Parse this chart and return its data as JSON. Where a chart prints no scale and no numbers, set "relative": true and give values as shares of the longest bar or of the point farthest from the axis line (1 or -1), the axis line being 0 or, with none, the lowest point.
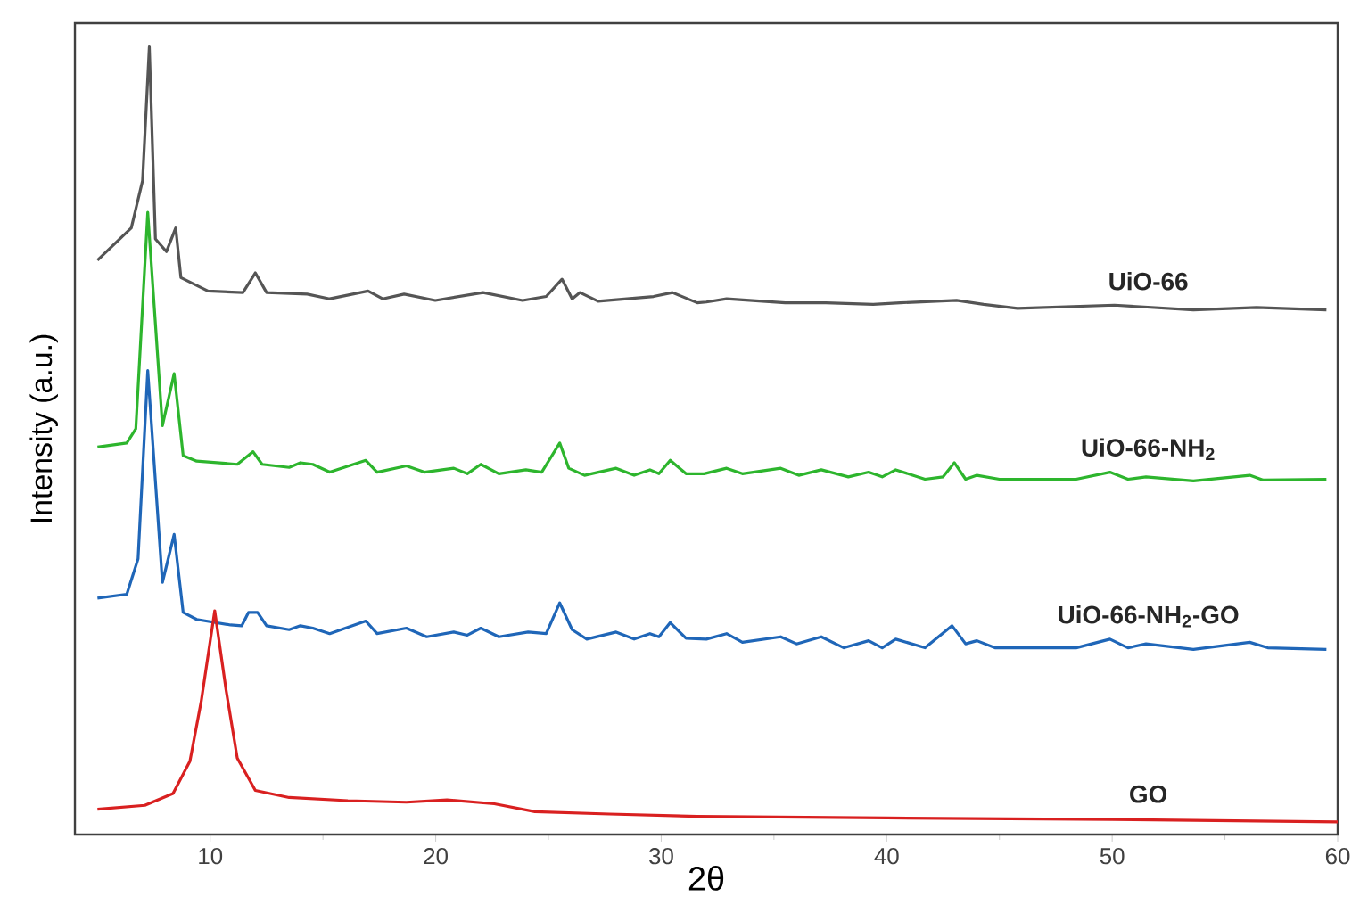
{
  "chart_data": {
    "type": "line",
    "xlabel": "2θ",
    "ylabel": "Intensity (a.u.)",
    "relative": true,
    "xlim": [
      4,
      60
    ],
    "xticks": [
      10,
      20,
      30,
      40,
      50,
      60
    ],
    "tick_labels": "x",
    "series": [
      {
        "name": "UiO-66",
        "color": "#555555",
        "x": [
          5,
          6.5,
          7,
          7.3,
          7.57,
          8.06,
          8.47,
          8.7,
          9.9,
          11.45,
          12,
          12.5,
          14.3,
          15.3,
          17,
          17.65,
          18.6,
          19.98,
          22.1,
          23.85,
          24.9,
          25.6,
          26.05,
          26.4,
          27.2,
          29.66,
          30.5,
          31.6,
          32,
          32.9,
          35.5,
          37.3,
          39.4,
          40.6,
          43.1,
          44.3,
          45.8,
          50.1,
          53.6,
          56.4,
          59.5
        ],
        "values": [
          0.729,
          0.77,
          0.83,
          1.0,
          0.756,
          0.74,
          0.77,
          0.707,
          0.69,
          0.688,
          0.713,
          0.688,
          0.686,
          0.68,
          0.69,
          0.68,
          0.686,
          0.678,
          0.688,
          0.678,
          0.683,
          0.705,
          0.68,
          0.688,
          0.677,
          0.683,
          0.688,
          0.675,
          0.676,
          0.68,
          0.675,
          0.675,
          0.673,
          0.675,
          0.678,
          0.673,
          0.668,
          0.672,
          0.666,
          0.669,
          0.666
        ]
      },
      {
        "name": "UiO-66-NH$_{2}$",
        "color": "#2db52d",
        "x": [
          5,
          6.3,
          6.7,
          7.23,
          7.88,
          8.4,
          8.8,
          9.4,
          11.2,
          11.9,
          12.3,
          13.5,
          14,
          14.55,
          15.3,
          16.9,
          17.4,
          18.7,
          19.5,
          20.8,
          21.4,
          22,
          22.8,
          24,
          24.7,
          25.5,
          25.9,
          26.6,
          28,
          28.8,
          29.5,
          29.9,
          30.4,
          31.1,
          31.9,
          32.9,
          33.6,
          35.3,
          36.1,
          37.1,
          38.3,
          39.2,
          39.8,
          40.4,
          41.7,
          42.5,
          43,
          43.5,
          44,
          45,
          48.4,
          49.9,
          50.7,
          51.5,
          53.6,
          56.1,
          56.7,
          59.5
        ],
        "values": [
          0.492,
          0.497,
          0.515,
          0.79,
          0.519,
          0.585,
          0.481,
          0.474,
          0.47,
          0.486,
          0.47,
          0.466,
          0.472,
          0.47,
          0.46,
          0.475,
          0.46,
          0.468,
          0.46,
          0.465,
          0.458,
          0.47,
          0.458,
          0.463,
          0.46,
          0.497,
          0.465,
          0.456,
          0.465,
          0.456,
          0.463,
          0.458,
          0.475,
          0.458,
          0.458,
          0.465,
          0.458,
          0.465,
          0.456,
          0.463,
          0.454,
          0.46,
          0.454,
          0.463,
          0.451,
          0.454,
          0.472,
          0.451,
          0.456,
          0.451,
          0.451,
          0.46,
          0.451,
          0.454,
          0.449,
          0.456,
          0.45,
          0.451
        ]
      },
      {
        "name": "UiO-66-NH$_{2}$-GO",
        "color": "#1f66b8",
        "x": [
          5,
          6.3,
          6.8,
          7.23,
          7.88,
          8.4,
          8.8,
          9.4,
          10.9,
          11.4,
          11.7,
          12.1,
          12.5,
          13.5,
          14,
          14.55,
          15.3,
          16.9,
          17.4,
          18.7,
          19.6,
          20.8,
          21.4,
          22,
          22.8,
          24.1,
          24.9,
          25.5,
          26.05,
          26.7,
          28,
          28.8,
          29.5,
          29.9,
          30.4,
          31.1,
          32,
          32.9,
          33.6,
          35.3,
          36,
          37.1,
          38.1,
          39.2,
          39.8,
          40.4,
          41.7,
          42.9,
          43.5,
          44,
          44.8,
          48.4,
          49.9,
          50.7,
          51.5,
          53.6,
          56.1,
          56.9,
          59.5
        ],
        "values": [
          0.3,
          0.305,
          0.35,
          0.589,
          0.32,
          0.381,
          0.282,
          0.273,
          0.266,
          0.265,
          0.282,
          0.282,
          0.265,
          0.26,
          0.265,
          0.262,
          0.255,
          0.271,
          0.255,
          0.262,
          0.251,
          0.257,
          0.253,
          0.262,
          0.251,
          0.257,
          0.255,
          0.294,
          0.26,
          0.248,
          0.257,
          0.248,
          0.255,
          0.251,
          0.269,
          0.249,
          0.248,
          0.255,
          0.244,
          0.251,
          0.242,
          0.251,
          0.237,
          0.246,
          0.237,
          0.248,
          0.237,
          0.265,
          0.242,
          0.246,
          0.237,
          0.237,
          0.248,
          0.237,
          0.242,
          0.235,
          0.244,
          0.237,
          0.235
        ]
      },
      {
        "name": "GO",
        "color": "#d92020",
        "x": [
          5,
          7.1,
          8.35,
          9.1,
          9.6,
          10.2,
          10.7,
          11.2,
          12,
          13.5,
          16.1,
          18.7,
          20.5,
          22.6,
          24.4,
          27.7,
          31.6,
          40,
          50,
          60
        ],
        "values": [
          0.032,
          0.037,
          0.052,
          0.093,
          0.169,
          0.284,
          0.184,
          0.097,
          0.056,
          0.047,
          0.043,
          0.041,
          0.044,
          0.039,
          0.029,
          0.026,
          0.023,
          0.021,
          0.019,
          0.016
        ]
      }
    ]
  }
}
